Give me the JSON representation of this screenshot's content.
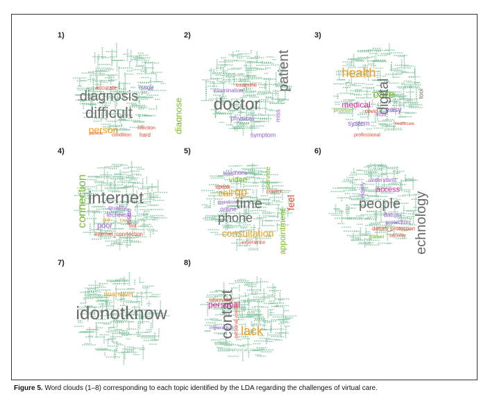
{
  "figure": {
    "caption_label": "Figure 5.",
    "caption_text": "Word clouds (1–8) corresponding to each topic identified by the LDA regarding the challenges of virtual care."
  },
  "colors": {
    "small_word": "#7fbf9a",
    "grey": "#6b6b6b",
    "orange": "#f39c1b",
    "red": "#e8452c",
    "purple": "#9a5bd6",
    "green": "#7ab929",
    "magenta": "#e0209a"
  },
  "clouds": [
    {
      "label": "1)",
      "words": [
        {
          "t": "diagnosis",
          "c": "#6b6b6b",
          "s": 20,
          "r": 0
        },
        {
          "t": "difficult",
          "c": "#6b6b6b",
          "s": 22,
          "r": 0
        },
        {
          "t": "person",
          "c": "#f39c1b",
          "s": 14,
          "r": 0
        },
        {
          "t": "diagnose",
          "c": "#7ab929",
          "s": 13,
          "r": -90
        },
        {
          "t": "accurate",
          "c": "#e8452c",
          "s": 8,
          "r": 0
        },
        {
          "t": "issue",
          "c": "#9a5bd6",
          "s": 9,
          "r": 0
        },
        {
          "t": "assess",
          "c": "#9a5bd6",
          "s": 9,
          "r": 0
        },
        {
          "t": "hard",
          "c": "#e8452c",
          "s": 8,
          "r": 0
        },
        {
          "t": "infection",
          "c": "#e8452c",
          "s": 7,
          "r": 0
        },
        {
          "t": "condition",
          "c": "#e8452c",
          "s": 7,
          "r": 0
        },
        {
          "t": "disease",
          "c": "#7fbf9a",
          "s": 6,
          "r": 0
        },
        {
          "t": "remote",
          "c": "#e8452c",
          "s": 6,
          "r": 0
        }
      ]
    },
    {
      "label": "2)",
      "words": [
        {
          "t": "doctor",
          "c": "#6b6b6b",
          "s": 24,
          "r": 0
        },
        {
          "t": "patient",
          "c": "#6b6b6b",
          "s": 20,
          "r": -90
        },
        {
          "t": "examine",
          "c": "#e8452c",
          "s": 8,
          "r": 0
        },
        {
          "t": "examination",
          "c": "#9a5bd6",
          "s": 8,
          "r": 0
        },
        {
          "t": "physical",
          "c": "#9a5bd6",
          "s": 9,
          "r": 0
        },
        {
          "t": "symptom",
          "c": "#9a5bd6",
          "s": 9,
          "r": 0
        },
        {
          "t": "miss",
          "c": "#9a5bd6",
          "s": 9,
          "r": -90
        },
        {
          "t": "physically",
          "c": "#7fbf9a",
          "s": 6,
          "r": 0
        },
        {
          "t": "assessment",
          "c": "#7fbf9a",
          "s": 6,
          "r": 0
        }
      ]
    },
    {
      "label": "3)",
      "words": [
        {
          "t": "health",
          "c": "#f39c1b",
          "s": 18,
          "r": 0
        },
        {
          "t": "care",
          "c": "#7ab929",
          "s": 16,
          "r": 0
        },
        {
          "t": "digital",
          "c": "#6b6b6b",
          "s": 20,
          "r": -90
        },
        {
          "t": "medical",
          "c": "#e0209a",
          "s": 12,
          "r": 0
        },
        {
          "t": "system",
          "c": "#9a5bd6",
          "s": 10,
          "r": 0
        },
        {
          "t": "easy",
          "c": "#9a5bd6",
          "s": 11,
          "r": 0
        },
        {
          "t": "visit",
          "c": "#9a5bd6",
          "s": 9,
          "r": 0
        },
        {
          "t": "covid",
          "c": "#e8452c",
          "s": 8,
          "r": 0
        },
        {
          "t": "provider",
          "c": "#7ab929",
          "s": 8,
          "r": 0
        },
        {
          "t": "tool",
          "c": "#6b6b6b",
          "s": 9,
          "r": -90
        },
        {
          "t": "professional",
          "c": "#e8452c",
          "s": 7,
          "r": 0
        },
        {
          "t": "staff",
          "c": "#7fbf9a",
          "s": 6,
          "r": 0
        },
        {
          "t": "pandemic",
          "c": "#7fbf9a",
          "s": 6,
          "r": 0
        },
        {
          "t": "healthcare",
          "c": "#e8452c",
          "s": 6,
          "r": 0
        }
      ]
    },
    {
      "label": "4)",
      "words": [
        {
          "t": "internet",
          "c": "#6b6b6b",
          "s": 24,
          "r": 0
        },
        {
          "t": "connection",
          "c": "#7ab929",
          "s": 16,
          "r": -90
        },
        {
          "t": "technical",
          "c": "#9a5bd6",
          "s": 9,
          "r": 0
        },
        {
          "t": "quality",
          "c": "#9a5bd6",
          "s": 9,
          "r": 0
        },
        {
          "t": "poor",
          "c": "#9a5bd6",
          "s": 11,
          "r": 0
        },
        {
          "t": "issue",
          "c": "#9a5bd6",
          "s": 10,
          "r": -90
        },
        {
          "t": "internet_connection",
          "c": "#e8452c",
          "s": 8,
          "r": 0
        },
        {
          "t": "fast",
          "c": "#e8452c",
          "s": 7,
          "r": 0
        },
        {
          "t": "skill",
          "c": "#f39c1b",
          "s": 7,
          "r": 0
        },
        {
          "t": "touch",
          "c": "#f39c1b",
          "s": 7,
          "r": 0
        },
        {
          "t": "network",
          "c": "#7fbf9a",
          "s": 6,
          "r": 0
        },
        {
          "t": "communication",
          "c": "#7fbf9a",
          "s": 6,
          "r": 0
        }
      ]
    },
    {
      "label": "5)",
      "words": [
        {
          "t": "time",
          "c": "#6b6b6b",
          "s": 20,
          "r": 0
        },
        {
          "t": "phone",
          "c": "#6b6b6b",
          "s": 18,
          "r": 0
        },
        {
          "t": "call",
          "c": "#f39c1b",
          "s": 14,
          "r": 0
        },
        {
          "t": "gp",
          "c": "#f39c1b",
          "s": 16,
          "r": 0
        },
        {
          "t": "feel",
          "c": "#e8452c",
          "s": 14,
          "r": -90
        },
        {
          "t": "consultation",
          "c": "#f39c1b",
          "s": 14,
          "r": 0
        },
        {
          "t": "appointment",
          "c": "#7ab929",
          "s": 12,
          "r": -90
        },
        {
          "t": "video",
          "c": "#7ab929",
          "s": 11,
          "r": 0
        },
        {
          "t": "service",
          "c": "#7ab929",
          "s": 10,
          "r": -90
        },
        {
          "t": "online",
          "c": "#9a5bd6",
          "s": 9,
          "r": 0
        },
        {
          "t": "telephone",
          "c": "#9a5bd6",
          "s": 8,
          "r": 0
        },
        {
          "t": "speak",
          "c": "#e8452c",
          "s": 8,
          "r": 0
        },
        {
          "t": "question",
          "c": "#9a5bd6",
          "s": 7,
          "r": 0
        },
        {
          "t": "experience",
          "c": "#e8452c",
          "s": 7,
          "r": 0
        },
        {
          "t": "privacy",
          "c": "#e8452c",
          "s": 7,
          "r": 0
        },
        {
          "t": "check",
          "c": "#7fbf9a",
          "s": 6,
          "r": 0
        }
      ]
    },
    {
      "label": "6)",
      "words": [
        {
          "t": "people",
          "c": "#6b6b6b",
          "s": 20,
          "r": 0
        },
        {
          "t": "technology",
          "c": "#6b6b6b",
          "s": 20,
          "r": -90
        },
        {
          "t": "access",
          "c": "#e0209a",
          "s": 11,
          "r": 0
        },
        {
          "t": "datum",
          "c": "#9a5bd6",
          "s": 9,
          "r": 0
        },
        {
          "t": "protection",
          "c": "#9a5bd6",
          "s": 8,
          "r": 0
        },
        {
          "t": "datum_protection",
          "c": "#e8452c",
          "s": 8,
          "r": 0
        },
        {
          "t": "elderly",
          "c": "#9a5bd6",
          "s": 8,
          "r": -90
        },
        {
          "t": "understand",
          "c": "#9a5bd6",
          "s": 8,
          "r": 0
        },
        {
          "t": "security",
          "c": "#e8452c",
          "s": 7,
          "r": 0
        },
        {
          "t": "patient",
          "c": "#7ab929",
          "s": 7,
          "r": 0
        }
      ]
    },
    {
      "label": "7)",
      "words": [
        {
          "t": "idonotknow",
          "c": "#6b6b6b",
          "s": 26,
          "r": 0
        },
        {
          "t": "noanswer",
          "c": "#f39c1b",
          "s": 10,
          "r": 0
        },
        {
          "t": "answer",
          "c": "#7fbf9a",
          "s": 6,
          "r": 0
        }
      ]
    },
    {
      "label": "8)",
      "words": [
        {
          "t": "contact",
          "c": "#6b6b6b",
          "s": 22,
          "r": -90
        },
        {
          "t": "lack",
          "c": "#f39c1b",
          "s": 18,
          "r": 0
        },
        {
          "t": "personal",
          "c": "#e0209a",
          "s": 12,
          "r": 0
        },
        {
          "t": "information",
          "c": "#e8452c",
          "s": 7,
          "r": 0
        },
        {
          "t": "impersonal",
          "c": "#9a5bd6",
          "s": 7,
          "r": 0
        },
        {
          "t": "personal_contact",
          "c": "#e8452c",
          "s": 7,
          "r": -90
        },
        {
          "t": "human",
          "c": "#7fbf9a",
          "s": 6,
          "r": 0
        },
        {
          "t": "physical_contact",
          "c": "#7fbf9a",
          "s": 6,
          "r": 0
        }
      ]
    }
  ]
}
